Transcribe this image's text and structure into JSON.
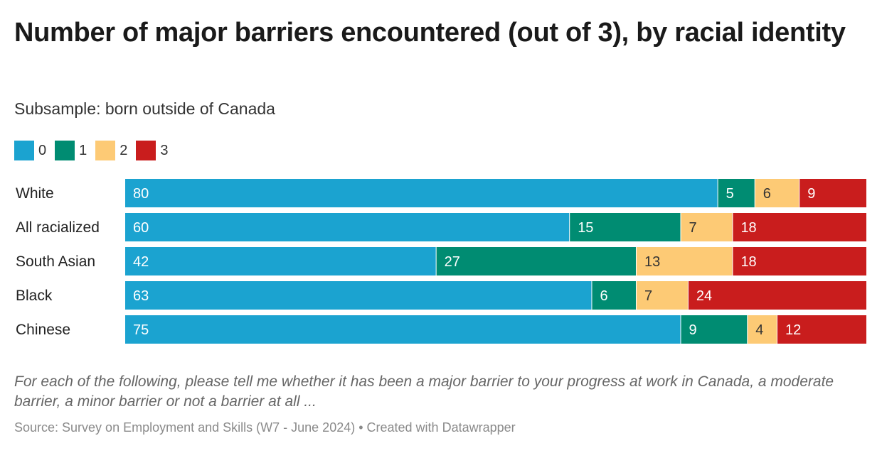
{
  "title": "Number of major barriers encountered (out of 3), by racial identity",
  "subtitle": "Subsample: born outside of Canada",
  "notes": "For each of the following, please tell me whether it has been a major barrier to your progress at work in Canada, a moderate barrier, a minor barrier or not a barrier at all ...",
  "source": "Source: Survey on Employment and Skills (W7 - June 2024) • Created with Datawrapper",
  "legend": [
    {
      "label": "0",
      "color": "#1ba3d0"
    },
    {
      "label": "1",
      "color": "#008c72"
    },
    {
      "label": "2",
      "color": "#fdca75"
    },
    {
      "label": "3",
      "color": "#c91d1d"
    }
  ],
  "chart_data": {
    "type": "bar",
    "orientation": "horizontal",
    "stacked": true,
    "categories": [
      "White",
      "All racialized",
      "South Asian",
      "Black",
      "Chinese"
    ],
    "series": [
      {
        "name": "0",
        "color": "#1ba3d0",
        "label_color": "#ffffff",
        "values": [
          80,
          60,
          42,
          63,
          75
        ]
      },
      {
        "name": "1",
        "color": "#008c72",
        "label_color": "#ffffff",
        "values": [
          5,
          15,
          27,
          6,
          9
        ]
      },
      {
        "name": "2",
        "color": "#fdca75",
        "label_color": "#333333",
        "values": [
          6,
          7,
          13,
          7,
          4
        ]
      },
      {
        "name": "3",
        "color": "#c91d1d",
        "label_color": "#ffffff",
        "values": [
          9,
          18,
          18,
          24,
          12
        ]
      }
    ],
    "legend_position": "top-left",
    "grid": false
  }
}
